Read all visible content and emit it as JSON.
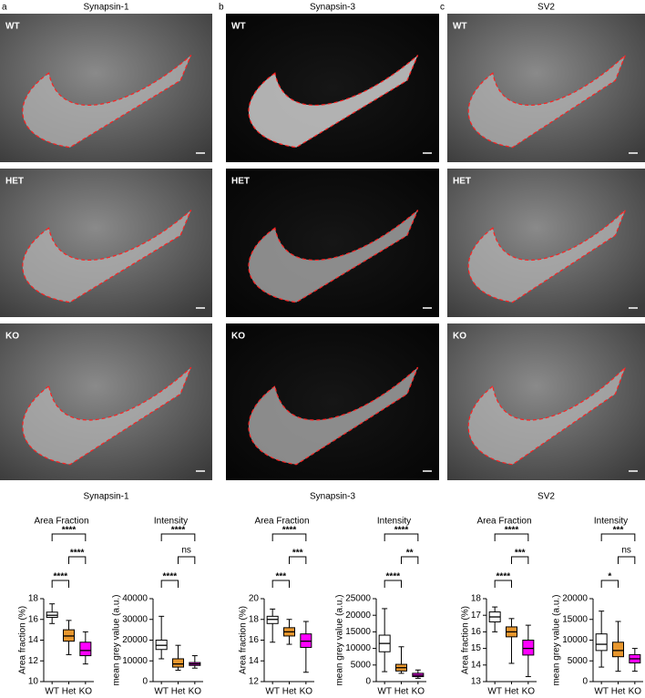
{
  "figure": {
    "panels": [
      {
        "letter": "a",
        "title": "Synapsin-1",
        "rows": [
          "WT",
          "HET",
          "KO"
        ],
        "group_title": "Synapsin-1"
      },
      {
        "letter": "b",
        "title": "Synapsin-3",
        "rows": [
          "WT",
          "HET",
          "KO"
        ],
        "group_title": "Synapsin-3"
      },
      {
        "letter": "c",
        "title": "SV2",
        "rows": [
          "WT",
          "HET",
          "KO"
        ],
        "group_title": "SV2"
      }
    ]
  },
  "chart_data": [
    {
      "type": "box",
      "title": "Area Fraction",
      "ylabel": "Area fraction (%)",
      "categories": [
        "WT",
        "Het",
        "KO"
      ],
      "colors": [
        "#ffffff",
        "#e8972e",
        "#ff00ff"
      ],
      "boxes": [
        {
          "min": 15.6,
          "q1": 16.2,
          "median": 16.4,
          "q3": 16.7,
          "max": 17.5
        },
        {
          "min": 12.6,
          "q1": 13.9,
          "median": 14.4,
          "q3": 15.0,
          "max": 15.9
        },
        {
          "min": 11.7,
          "q1": 12.5,
          "median": 13.0,
          "q3": 13.8,
          "max": 14.8
        }
      ],
      "ylim": [
        10,
        18
      ],
      "yticks": [
        10,
        12,
        14,
        16,
        18
      ],
      "comparisons": [
        {
          "between": [
            "WT",
            "Het"
          ],
          "label": "****"
        },
        {
          "between": [
            "Het",
            "KO"
          ],
          "label": "****"
        },
        {
          "between": [
            "WT",
            "KO"
          ],
          "label": "****"
        }
      ]
    },
    {
      "type": "box",
      "title": "Intensity",
      "ylabel": "mean grey value (a.u.)",
      "categories": [
        "WT",
        "Het",
        "KO"
      ],
      "colors": [
        "#ffffff",
        "#e8972e",
        "#ff00ff"
      ],
      "boxes": [
        {
          "min": 11000,
          "q1": 15500,
          "median": 17500,
          "q3": 20000,
          "max": 31500
        },
        {
          "min": 5500,
          "q1": 7000,
          "median": 8500,
          "q3": 11000,
          "max": 17500
        },
        {
          "min": 6500,
          "q1": 7800,
          "median": 8500,
          "q3": 9200,
          "max": 12500
        }
      ],
      "ylim": [
        0,
        40000
      ],
      "yticks": [
        0,
        10000,
        20000,
        30000,
        40000
      ],
      "comparisons": [
        {
          "between": [
            "WT",
            "Het"
          ],
          "label": "****"
        },
        {
          "between": [
            "Het",
            "KO"
          ],
          "label": "ns"
        },
        {
          "between": [
            "WT",
            "KO"
          ],
          "label": "****"
        }
      ]
    },
    {
      "type": "box",
      "title": "Area Fraction",
      "ylabel": "Area fraction (%)",
      "categories": [
        "WT",
        "Het",
        "KO"
      ],
      "colors": [
        "#ffffff",
        "#e8972e",
        "#ff00ff"
      ],
      "boxes": [
        {
          "min": 15.8,
          "q1": 17.6,
          "median": 18.0,
          "q3": 18.3,
          "max": 19.0
        },
        {
          "min": 15.6,
          "q1": 16.4,
          "median": 16.8,
          "q3": 17.2,
          "max": 18.0
        },
        {
          "min": 12.9,
          "q1": 15.3,
          "median": 15.9,
          "q3": 16.6,
          "max": 17.8
        }
      ],
      "ylim": [
        12,
        20
      ],
      "yticks": [
        12,
        14,
        16,
        18,
        20
      ],
      "comparisons": [
        {
          "between": [
            "WT",
            "Het"
          ],
          "label": "***"
        },
        {
          "between": [
            "Het",
            "KO"
          ],
          "label": "***"
        },
        {
          "between": [
            "WT",
            "KO"
          ],
          "label": "****"
        }
      ]
    },
    {
      "type": "box",
      "title": "Intensity",
      "ylabel": "mean grey value (a.u.)",
      "categories": [
        "WT",
        "Het",
        "KO"
      ],
      "colors": [
        "#ffffff",
        "#e8972e",
        "#ff00ff"
      ],
      "boxes": [
        {
          "min": 3000,
          "q1": 9000,
          "median": 11500,
          "q3": 14000,
          "max": 22000
        },
        {
          "min": 2500,
          "q1": 3200,
          "median": 4200,
          "q3": 5200,
          "max": 10500
        },
        {
          "min": 1000,
          "q1": 1500,
          "median": 1900,
          "q3": 2500,
          "max": 3500
        }
      ],
      "ylim": [
        0,
        25000
      ],
      "yticks": [
        0,
        5000,
        10000,
        15000,
        20000,
        25000
      ],
      "comparisons": [
        {
          "between": [
            "WT",
            "Het"
          ],
          "label": "****"
        },
        {
          "between": [
            "Het",
            "KO"
          ],
          "label": "**"
        },
        {
          "between": [
            "WT",
            "KO"
          ],
          "label": "****"
        }
      ]
    },
    {
      "type": "box",
      "title": "Area Fraction",
      "ylabel": "Area fraction (%)",
      "categories": [
        "WT",
        "Het",
        "KO"
      ],
      "colors": [
        "#ffffff",
        "#e8972e",
        "#ff00ff"
      ],
      "boxes": [
        {
          "min": 16.0,
          "q1": 16.6,
          "median": 16.9,
          "q3": 17.2,
          "max": 17.5
        },
        {
          "min": 14.1,
          "q1": 15.7,
          "median": 16.0,
          "q3": 16.3,
          "max": 16.8
        },
        {
          "min": 13.3,
          "q1": 14.6,
          "median": 15.0,
          "q3": 15.5,
          "max": 16.4
        }
      ],
      "ylim": [
        13,
        18
      ],
      "yticks": [
        13,
        14,
        15,
        16,
        17,
        18
      ],
      "comparisons": [
        {
          "between": [
            "WT",
            "Het"
          ],
          "label": "****"
        },
        {
          "between": [
            "Het",
            "KO"
          ],
          "label": "***"
        },
        {
          "between": [
            "WT",
            "KO"
          ],
          "label": "****"
        }
      ]
    },
    {
      "type": "box",
      "title": "Intensity",
      "ylabel": "mean grey value (a.u.)",
      "categories": [
        "WT",
        "Het",
        "KO"
      ],
      "colors": [
        "#ffffff",
        "#e8972e",
        "#ff00ff"
      ],
      "boxes": [
        {
          "min": 3500,
          "q1": 7500,
          "median": 9000,
          "q3": 11500,
          "max": 17000
        },
        {
          "min": 2500,
          "q1": 6000,
          "median": 7500,
          "q3": 9500,
          "max": 14500
        },
        {
          "min": 2500,
          "q1": 4500,
          "median": 5500,
          "q3": 6500,
          "max": 8000
        }
      ],
      "ylim": [
        0,
        20000
      ],
      "yticks": [
        0,
        5000,
        10000,
        15000,
        20000
      ],
      "comparisons": [
        {
          "between": [
            "WT",
            "Het"
          ],
          "label": "*"
        },
        {
          "between": [
            "Het",
            "KO"
          ],
          "label": "ns"
        },
        {
          "between": [
            "WT",
            "KO"
          ],
          "label": "***"
        }
      ]
    }
  ]
}
